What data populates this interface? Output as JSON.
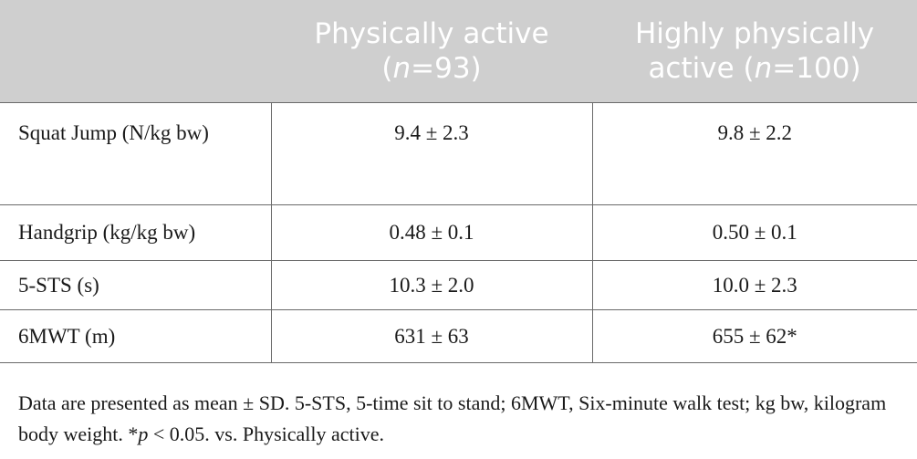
{
  "header": {
    "col1": "",
    "col2": {
      "title": "Physically active",
      "n_prefix": "(",
      "n_var": "n",
      "n_value": "=93)"
    },
    "col3": {
      "title": "Highly physically",
      "title2": "active",
      "n_prefix": "(",
      "n_var": "n",
      "n_value": "=100)"
    }
  },
  "rows": [
    {
      "label": "Squat Jump (N/kg bw)",
      "pa": "9.4 ± 2.3",
      "hpa": "9.8 ± 2.2"
    },
    {
      "label": "Handgrip (kg/kg bw)",
      "pa": "0.48 ± 0.1",
      "hpa": "0.50 ± 0.1"
    },
    {
      "label": "5-STS (s)",
      "pa": "10.3 ± 2.0",
      "hpa": "10.0 ± 2.3"
    },
    {
      "label": "6MWT (m)",
      "pa": "631 ± 63",
      "hpa": "655 ± 62*"
    }
  ],
  "footnote": {
    "part1": "Data are presented as mean ± SD. 5-STS, 5-time sit to stand; 6MWT, Six-minute walk test; kg bw, kilogram body weight. *",
    "p_var": "p",
    "part2": " < 0.05. vs. Physically active."
  }
}
